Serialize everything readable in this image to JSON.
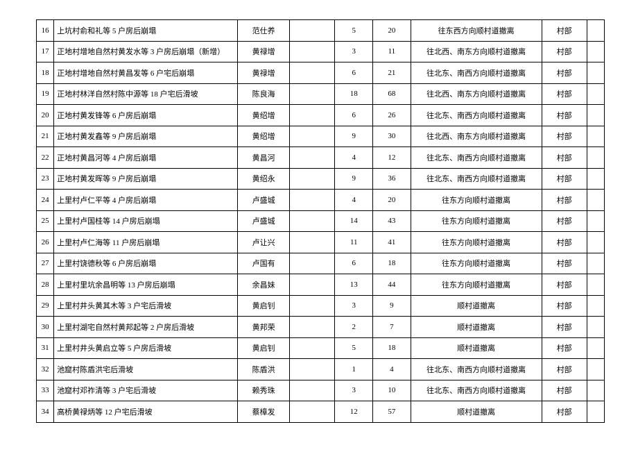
{
  "table": {
    "columns": [
      "idx",
      "desc",
      "name",
      "empty",
      "num1",
      "num2",
      "dir",
      "dept",
      "tail"
    ],
    "col_classes": [
      "col-idx",
      "col-desc",
      "col-name",
      "col-empty",
      "col-num1",
      "col-num2",
      "col-dir",
      "col-dept",
      "col-tail"
    ],
    "rows": [
      {
        "idx": "16",
        "desc": "上坑村俞和礼等 5 户房后崩塌",
        "name": "范仕养",
        "empty": "",
        "num1": "5",
        "num2": "20",
        "dir": "往东西方向顺村道撤离",
        "dept": "村部",
        "tail": ""
      },
      {
        "idx": "17",
        "desc": "正地村增地自然村黄发水等 3 户房后崩塌（新增）",
        "name": "黄禄增",
        "empty": "",
        "num1": "3",
        "num2": "11",
        "dir": "往北西、南东方向顺村道撤离",
        "dept": "村部",
        "tail": ""
      },
      {
        "idx": "18",
        "desc": "正地村增地自然村黄昌发等 6 户宅后崩塌",
        "name": "黄禄增",
        "empty": "",
        "num1": "6",
        "num2": "21",
        "dir": "往北东、南西方向顺村道撤离",
        "dept": "村部",
        "tail": ""
      },
      {
        "idx": "19",
        "desc": "正地村林洋自然村陈中源等 18 户宅后滑坡",
        "name": "陈良海",
        "empty": "",
        "num1": "18",
        "num2": "68",
        "dir": "往北西、南东方向顺村道撤离",
        "dept": "村部",
        "tail": ""
      },
      {
        "idx": "20",
        "desc": "正地村黄发锋等 6 户房后崩塌",
        "name": "黄绍增",
        "empty": "",
        "num1": "6",
        "num2": "26",
        "dir": "往北东、南西方向顺村道撤离",
        "dept": "村部",
        "tail": ""
      },
      {
        "idx": "21",
        "desc": "正地村黄发鑫等 9 户房后崩塌",
        "name": "黄绍增",
        "empty": "",
        "num1": "9",
        "num2": "30",
        "dir": "往北西、南东方向顺村道撤离",
        "dept": "村部",
        "tail": ""
      },
      {
        "idx": "22",
        "desc": "正地村黄昌河等 4 户房后崩塌",
        "name": "黄昌河",
        "empty": "",
        "num1": "4",
        "num2": "12",
        "dir": "往北东、南西方向顺村道撤离",
        "dept": "村部",
        "tail": ""
      },
      {
        "idx": "23",
        "desc": "正地村黄发晖等 9 户房后崩塌",
        "name": "黄绍永",
        "empty": "",
        "num1": "9",
        "num2": "36",
        "dir": "往北东、南西方向顺村道撤离",
        "dept": "村部",
        "tail": ""
      },
      {
        "idx": "24",
        "desc": "上里村卢仁平等 4 户房后崩塌",
        "name": "卢盛城",
        "empty": "",
        "num1": "4",
        "num2": "20",
        "dir": "往东方向顺村道撤离",
        "dept": "村部",
        "tail": ""
      },
      {
        "idx": "25",
        "desc": "上里村卢国桂等 14 户房后崩塌",
        "name": "卢盛城",
        "empty": "",
        "num1": "14",
        "num2": "43",
        "dir": "往东方向顺村道撤离",
        "dept": "村部",
        "tail": ""
      },
      {
        "idx": "26",
        "desc": "上里村卢仁海等 11 户房后崩塌",
        "name": "卢让兴",
        "empty": "",
        "num1": "11",
        "num2": "41",
        "dir": "往东方向顺村道撤离",
        "dept": "村部",
        "tail": ""
      },
      {
        "idx": "27",
        "desc": "上里村饶德秋等 6 户房后崩塌",
        "name": "卢国有",
        "empty": "",
        "num1": "6",
        "num2": "18",
        "dir": "往东方向顺村道撤离",
        "dept": "村部",
        "tail": ""
      },
      {
        "idx": "28",
        "desc": "上里村里坑余昌明等 13 户房后崩塌",
        "name": "余昌妹",
        "empty": "",
        "num1": "13",
        "num2": "44",
        "dir": "往东方向顺村道撤离",
        "dept": "村部",
        "tail": ""
      },
      {
        "idx": "29",
        "desc": "上里村井头黄其木等 3 户宅后滑坡",
        "name": "黄启钊",
        "empty": "",
        "num1": "3",
        "num2": "9",
        "dir": "顺村道撤离",
        "dept": "村部",
        "tail": ""
      },
      {
        "idx": "30",
        "desc": "上里村湖宅自然村黄邦起等 2 户房后滑坡",
        "name": "黄邦荣",
        "empty": "",
        "num1": "2",
        "num2": "7",
        "dir": "顺村道撤离",
        "dept": "村部",
        "tail": ""
      },
      {
        "idx": "31",
        "desc": "上里村井头黄启立等 5 户房后滑坡",
        "name": "黄启钊",
        "empty": "",
        "num1": "5",
        "num2": "18",
        "dir": "顺村道撤离",
        "dept": "村部",
        "tail": ""
      },
      {
        "idx": "32",
        "desc": "池窟村陈盾洪宅后滑坡",
        "name": "陈盾洪",
        "empty": "",
        "num1": "1",
        "num2": "4",
        "dir": "往北东、南西方向顺村道撤离",
        "dept": "村部",
        "tail": ""
      },
      {
        "idx": "33",
        "desc": "池窟村邓祚清等 3 户宅后滑坡",
        "name": "赖秀珠",
        "empty": "",
        "num1": "3",
        "num2": "10",
        "dir": "往北东、南西方向顺村道撤离",
        "dept": "村部",
        "tail": ""
      },
      {
        "idx": "34",
        "desc": "高桥黄禄炳等 12 户宅后滑坡",
        "name": "蔡樟发",
        "empty": "",
        "num1": "12",
        "num2": "57",
        "dir": "顺村道撤离",
        "dept": "村部",
        "tail": ""
      }
    ]
  },
  "style": {
    "font_family": "SimSun",
    "font_size_pt": 8,
    "border_color": "#000000",
    "background_color": "#ffffff",
    "text_color": "#000000"
  }
}
